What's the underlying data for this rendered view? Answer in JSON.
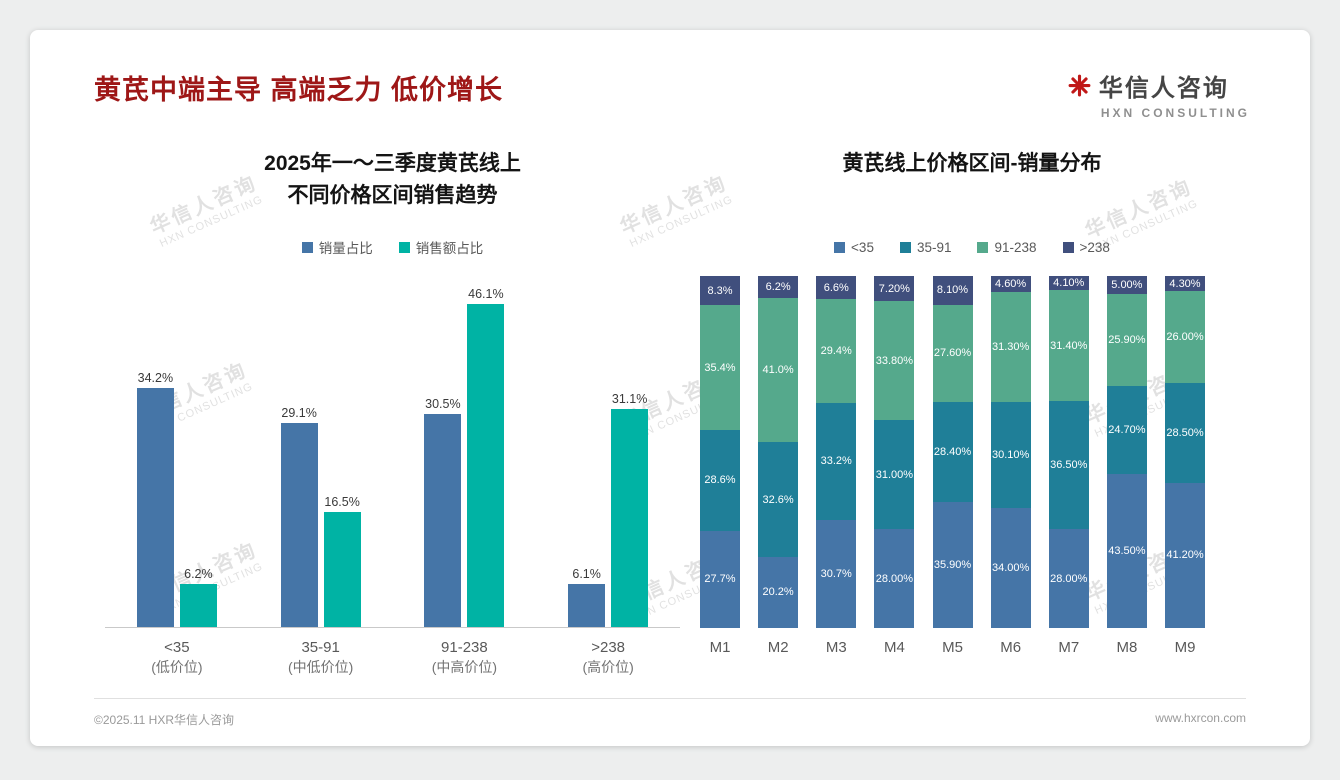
{
  "page": {
    "title": "黄芪中端主导 高端乏力 低价增长",
    "footer_left": "©2025.11 HXR华信人咨询",
    "footer_right": "www.hxrcon.com"
  },
  "logo": {
    "name": "华信人咨询",
    "subtitle": "HXN CONSULTING",
    "mark_icon": "red-asterisk-icon",
    "brand_red": "#c01818"
  },
  "watermark": {
    "line1": "华信人咨询",
    "line2": "HXN CONSULTING"
  },
  "colors": {
    "title_red": "#9e1717",
    "volume_blue": "#4575a7",
    "revenue_teal": "#00b3a4",
    "stack_blue": "#4575a7",
    "stack_teal": "#1f7f98",
    "stack_green": "#55a98c",
    "stack_navy": "#404f7d"
  },
  "chart_data": [
    {
      "type": "bar",
      "title_lines": [
        "2025年一～三季度黄芪线上",
        "不同价格区间销售趋势"
      ],
      "categories": [
        "<35",
        "35-91",
        "91-238",
        ">238"
      ],
      "category_sublabels": [
        "(低价位)",
        "(中低价位)",
        "(中高价位)",
        "(高价位)"
      ],
      "series": [
        {
          "name": "销量占比",
          "color": "#4575a7",
          "values": [
            34.2,
            29.1,
            30.5,
            6.1
          ],
          "labels": [
            "34.2%",
            "29.1%",
            "30.5%",
            "6.1%"
          ]
        },
        {
          "name": "销售额占比",
          "color": "#00b3a4",
          "values": [
            6.2,
            16.5,
            46.1,
            31.1
          ],
          "labels": [
            "6.2%",
            "16.5%",
            "46.1%",
            "31.1%"
          ]
        }
      ],
      "ylim": [
        0,
        50
      ],
      "grid": false,
      "legend_position": "top",
      "value_labels": true
    },
    {
      "type": "bar",
      "subtype": "stacked-100",
      "title": "黄芪线上价格区间-销量分布",
      "categories": [
        "M1",
        "M2",
        "M3",
        "M4",
        "M5",
        "M6",
        "M7",
        "M8",
        "M9"
      ],
      "series": [
        {
          "name": "<35",
          "color": "#4575a7",
          "values": [
            27.7,
            20.2,
            30.7,
            28.0,
            35.9,
            34.0,
            28.0,
            43.5,
            41.2
          ],
          "labels": [
            "27.7%",
            "20.2%",
            "30.7%",
            "28.00%",
            "35.90%",
            "34.00%",
            "28.00%",
            "43.50%",
            "41.20%"
          ]
        },
        {
          "name": "35-91",
          "color": "#1f7f98",
          "values": [
            28.6,
            32.6,
            33.2,
            31.0,
            28.4,
            30.1,
            36.5,
            24.7,
            28.5
          ],
          "labels": [
            "28.6%",
            "32.6%",
            "33.2%",
            "31.00%",
            "28.40%",
            "30.10%",
            "36.50%",
            "24.70%",
            "28.50%"
          ]
        },
        {
          "name": "91-238",
          "color": "#55a98c",
          "values": [
            35.4,
            41.0,
            29.4,
            33.8,
            27.6,
            31.3,
            31.4,
            25.9,
            26.0
          ],
          "labels": [
            "35.4%",
            "41.0%",
            "29.4%",
            "33.80%",
            "27.60%",
            "31.30%",
            "31.40%",
            "25.90%",
            "26.00%"
          ]
        },
        {
          "name": ">238",
          "color": "#404f7d",
          "values": [
            8.3,
            6.2,
            6.6,
            7.2,
            8.1,
            4.6,
            4.1,
            5.0,
            4.3
          ],
          "labels": [
            "8.3%",
            "6.2%",
            "6.6%",
            "7.20%",
            "8.10%",
            "4.60%",
            "4.10%",
            "5.00%",
            "4.30%"
          ]
        }
      ],
      "ylim": [
        0,
        100
      ],
      "grid": false,
      "legend_position": "top",
      "value_labels": true
    }
  ]
}
